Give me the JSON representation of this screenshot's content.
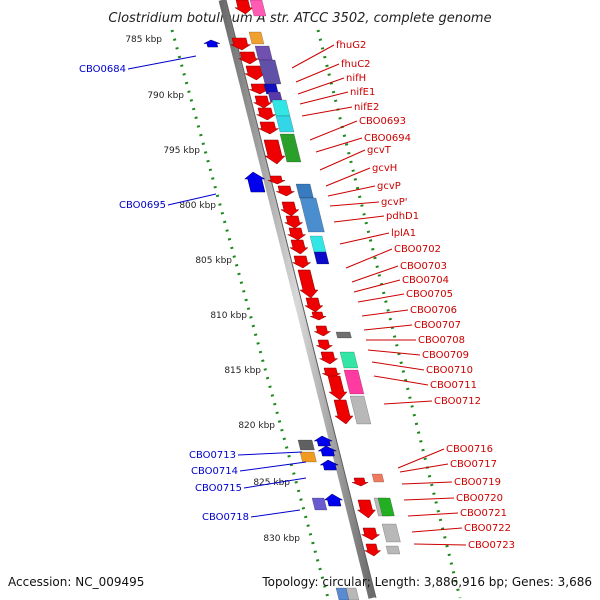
{
  "title": "Clostridium botulinum A str. ATCC 3502, complete genome",
  "accession": "Accession: NC_009495",
  "topology": "Topology: circular; Length: 3,886,916 bp; Genes: 3,686",
  "scale_labels": [
    "785 kbp",
    "790 kbp",
    "795 kbp",
    "800 kbp",
    "805 kbp",
    "810 kbp",
    "815 kbp",
    "820 kbp",
    "825 kbp",
    "830 kbp"
  ],
  "right_labels": [
    "fhuG2",
    "fhuC2",
    "nifH",
    "nifE1",
    "nifE2",
    "CBO0693",
    "CBO0694",
    "gcvT",
    "gcvH",
    "gcvP",
    "gcvP'",
    "pdhD1",
    "lplA1",
    "CBO0702",
    "CBO0703",
    "CBO0704",
    "CBO0705",
    "CBO0706",
    "CBO0707",
    "CBO0708",
    "CBO0709",
    "CBO0710",
    "CBO0711",
    "CBO0712",
    "CBO0716",
    "CBO0717",
    "CBO0719",
    "CBO0720",
    "CBO0721",
    "CBO0722",
    "CBO0723"
  ],
  "left_labels": [
    "CBO0684",
    "CBO0695",
    "CBO0713",
    "CBO0714",
    "CBO0715",
    "CBO0718"
  ],
  "colors": {
    "backbone": "#8c8c8c",
    "scale_dots": "#1e8a1e",
    "gene_red": "#ee0000",
    "gene_blue": "#0000ee",
    "label_red": "#cc0000",
    "label_blue": "#0000cc"
  }
}
